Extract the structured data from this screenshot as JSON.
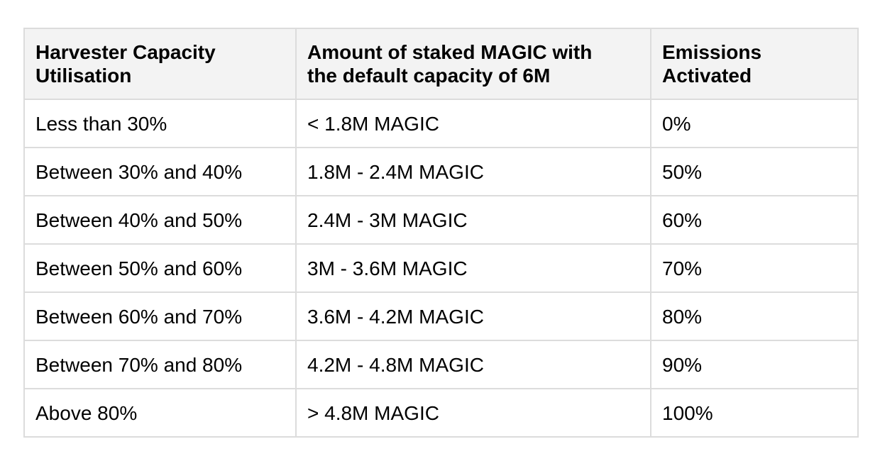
{
  "table": {
    "headers": [
      [
        "Harvester Capacity",
        "Utilisation"
      ],
      [
        "Amount of staked MAGIC with",
        "the default capacity of 6M"
      ],
      [
        "Emissions",
        "Activated"
      ]
    ],
    "rows": [
      [
        "Less than 30%",
        "< 1.8M MAGIC",
        "0%"
      ],
      [
        "Between 30% and 40%",
        "1.8M - 2.4M MAGIC",
        "50%"
      ],
      [
        "Between 40% and 50%",
        "2.4M - 3M MAGIC",
        "60%"
      ],
      [
        "Between 50% and 60%",
        "3M - 3.6M MAGIC",
        "70%"
      ],
      [
        "Between 60% and 70%",
        "3.6M - 4.2M MAGIC",
        "80%"
      ],
      [
        "Between 70% and 80%",
        "4.2M - 4.8M MAGIC",
        "90%"
      ],
      [
        "Above 80%",
        "> 4.8M MAGIC",
        "100%"
      ]
    ]
  },
  "colors": {
    "header_background": "#f3f3f3",
    "border": "#dcdcdc",
    "text": "#000000"
  }
}
